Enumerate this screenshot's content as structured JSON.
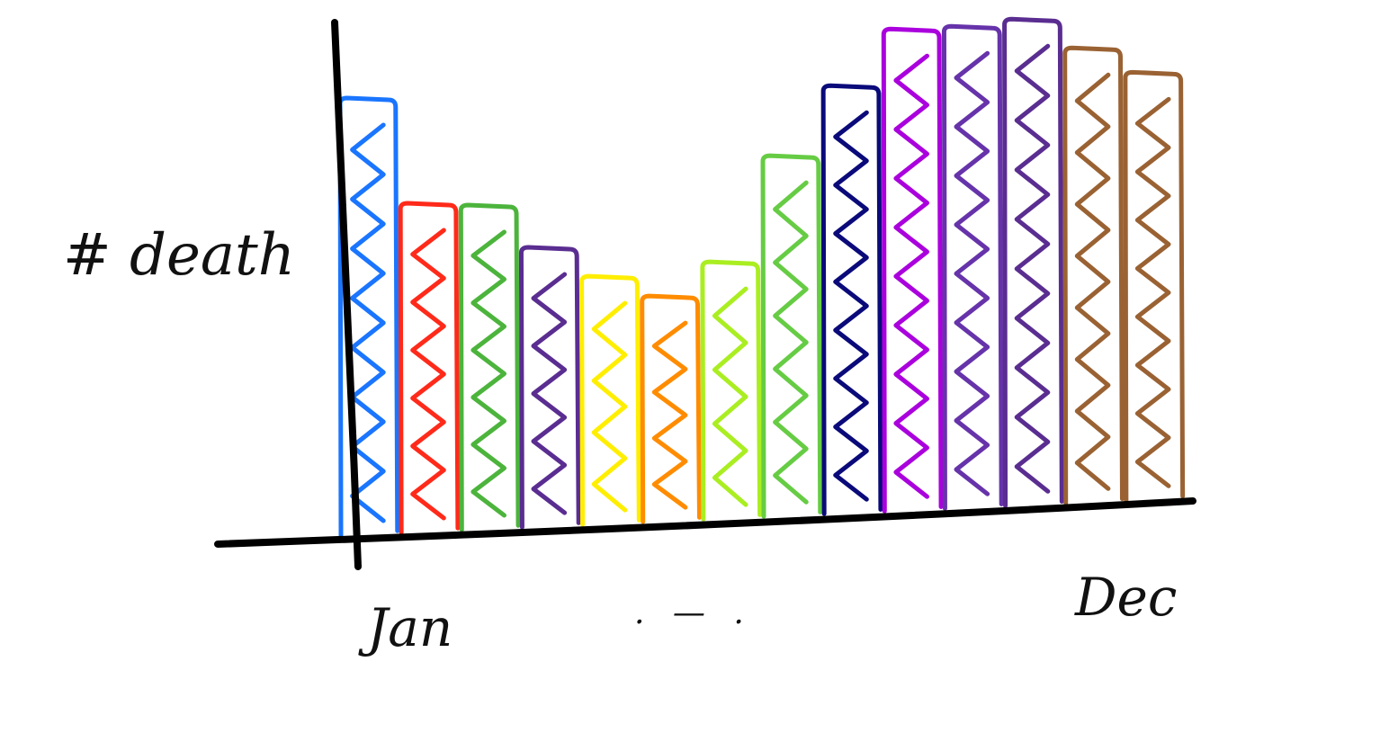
{
  "chart_data": {
    "type": "bar",
    "style": "hand-drawn sketch",
    "ylabel": "# death",
    "x_tick_labels": [
      "Jan",
      "Dec"
    ],
    "x_ellipsis": ". — .",
    "categories": [
      "",
      "",
      "",
      "",
      "",
      "",
      "",
      "",
      "",
      "",
      "",
      "",
      "",
      ""
    ],
    "values": [
      490,
      370,
      365,
      315,
      280,
      255,
      290,
      405,
      480,
      540,
      540,
      545,
      510,
      480
    ],
    "colors": [
      "#1a75ff",
      "#ff2a1a",
      "#4cb43c",
      "#5a2d91",
      "#ffee00",
      "#ff8c00",
      "#aaee22",
      "#66cc44",
      "#0a0a7a",
      "#aa00dd",
      "#6633aa",
      "#5a2d91",
      "#9a6233",
      "#9a6233"
    ],
    "grid": false,
    "legend": "none"
  }
}
